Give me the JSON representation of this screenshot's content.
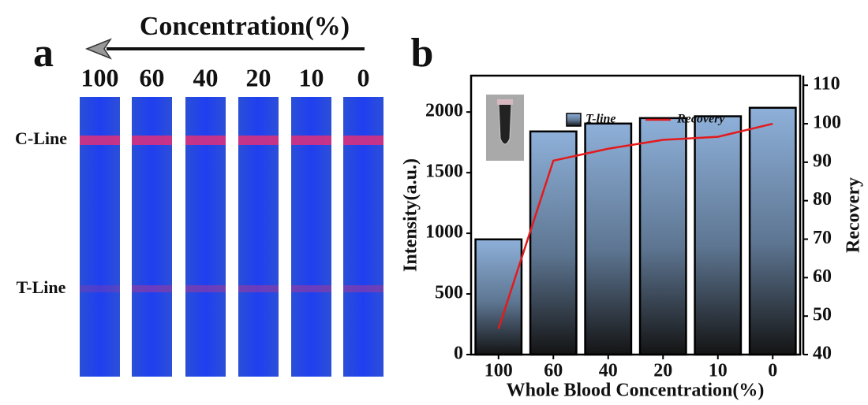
{
  "panel_a": {
    "label": "a",
    "arrow_label": "Concentration(%)",
    "concentrations": [
      100,
      60,
      40,
      20,
      10,
      0
    ],
    "line_labels": [
      "C-Line",
      "T-Line"
    ]
  },
  "chart_data": {
    "type": "bar",
    "label": "b",
    "xlabel": "Whole Blood Concentration(%)",
    "ylabel": "Intensity(a.u.)",
    "y2label": "Recovery",
    "categories": [
      "100",
      "60",
      "40",
      "20",
      "10",
      "0"
    ],
    "series": [
      {
        "name": "T-line",
        "type": "bar",
        "color": "#8eb0d9",
        "values": [
          950,
          1840,
          1905,
          1950,
          1965,
          2035
        ]
      },
      {
        "name": "Recovery",
        "type": "line",
        "axis": "y2",
        "color": "#e31a1c",
        "values": [
          46.7,
          90.4,
          93.5,
          95.8,
          96.6,
          100
        ]
      }
    ],
    "ylim": [
      0,
      2300
    ],
    "yticks": [
      0,
      500,
      1000,
      1500,
      2000
    ],
    "y2lim": [
      40,
      112.5
    ],
    "y2ticks": [
      40,
      50,
      60,
      70,
      80,
      90,
      100,
      110
    ],
    "grid": false
  }
}
